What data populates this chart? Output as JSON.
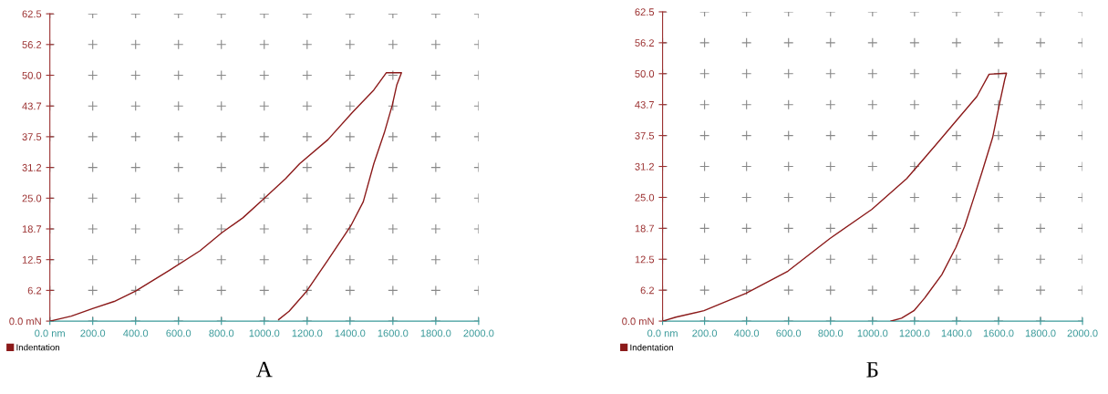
{
  "chart_data": [
    {
      "type": "line",
      "xlim": [
        0,
        2000
      ],
      "ylim": [
        0,
        62.5
      ],
      "xticks": [
        {
          "value": 0,
          "label": "0.0 nm"
        },
        {
          "value": 200,
          "label": "200.0"
        },
        {
          "value": 400,
          "label": "400.0"
        },
        {
          "value": 600,
          "label": "600.0"
        },
        {
          "value": 800,
          "label": "800.0"
        },
        {
          "value": 1000,
          "label": "1000.0"
        },
        {
          "value": 1200,
          "label": "1200.0"
        },
        {
          "value": 1400,
          "label": "1400.0"
        },
        {
          "value": 1600,
          "label": "1600.0"
        },
        {
          "value": 1800,
          "label": "1800.0"
        },
        {
          "value": 2000,
          "label": "2000.0"
        }
      ],
      "yticks": [
        {
          "value": 0,
          "label": "0.0 mN"
        },
        {
          "value": 6.25,
          "label": "6.2"
        },
        {
          "value": 12.5,
          "label": "12.5"
        },
        {
          "value": 18.75,
          "label": "18.7"
        },
        {
          "value": 25,
          "label": "25.0"
        },
        {
          "value": 31.25,
          "label": "31.2"
        },
        {
          "value": 37.5,
          "label": "37.5"
        },
        {
          "value": 43.75,
          "label": "43.7"
        },
        {
          "value": 50,
          "label": "50.0"
        },
        {
          "value": 56.25,
          "label": "56.2"
        },
        {
          "value": 62.5,
          "label": "62.5"
        }
      ],
      "grid": true,
      "legend": "bottom left",
      "annotations": [
        "А"
      ],
      "series": [
        {
          "name": "Indentation",
          "color": "#8b1a1a",
          "x": [
            0,
            100,
            202,
            300,
            400,
            556,
            700,
            803,
            900,
            1001,
            1100,
            1165,
            1297,
            1412,
            1511,
            1569,
            1640,
            1618,
            1597,
            1560,
            1511,
            1462,
            1404,
            1297,
            1198,
            1116,
            1067
          ],
          "values": [
            0,
            1.0,
            2.6,
            4.0,
            6.1,
            10.3,
            14.3,
            18.0,
            21.0,
            25.0,
            29.0,
            32.0,
            36.9,
            42.5,
            47.0,
            50.5,
            50.5,
            48.0,
            43.9,
            38.3,
            32.0,
            24.3,
            19.4,
            12.4,
            6.1,
            2.0,
            0.3
          ]
        }
      ]
    },
    {
      "type": "line",
      "xlim": [
        0,
        2000
      ],
      "ylim": [
        0,
        62.5
      ],
      "xticks": [
        {
          "value": 0,
          "label": "0.0 nm"
        },
        {
          "value": 200,
          "label": "200.0"
        },
        {
          "value": 400,
          "label": "400.0"
        },
        {
          "value": 600,
          "label": "600.0"
        },
        {
          "value": 800,
          "label": "800.0"
        },
        {
          "value": 1000,
          "label": "1000.0"
        },
        {
          "value": 1200,
          "label": "1200.0"
        },
        {
          "value": 1400,
          "label": "1400.0"
        },
        {
          "value": 1600,
          "label": "1600.0"
        },
        {
          "value": 1800,
          "label": "1800.0"
        },
        {
          "value": 2000,
          "label": "2000.0"
        }
      ],
      "yticks": [
        {
          "value": 0,
          "label": "0.0 mN"
        },
        {
          "value": 6.25,
          "label": "6.2"
        },
        {
          "value": 12.5,
          "label": "12.5"
        },
        {
          "value": 18.75,
          "label": "18.7"
        },
        {
          "value": 25,
          "label": "25.0"
        },
        {
          "value": 31.25,
          "label": "31.2"
        },
        {
          "value": 37.5,
          "label": "37.5"
        },
        {
          "value": 43.75,
          "label": "43.7"
        },
        {
          "value": 50,
          "label": "50.0"
        },
        {
          "value": 56.25,
          "label": "56.2"
        },
        {
          "value": 62.5,
          "label": "62.5"
        }
      ],
      "grid": true,
      "legend": "bottom left",
      "annotations": [
        "Б"
      ],
      "series": [
        {
          "name": "Indentation",
          "color": "#8b1a1a",
          "x": [
            0,
            63,
            197,
            397,
            597,
            797,
            997,
            1163,
            1297,
            1413,
            1497,
            1555,
            1638,
            1630,
            1605,
            1572,
            1522,
            1480,
            1438,
            1397,
            1330,
            1247,
            1197,
            1138,
            1088
          ],
          "values": [
            0,
            0.8,
            2.1,
            5.6,
            10.1,
            16.7,
            22.6,
            28.8,
            35.4,
            41.2,
            45.4,
            49.9,
            50.1,
            48.9,
            44.0,
            37.1,
            30.2,
            24.6,
            19.1,
            14.9,
            9.4,
            4.6,
            2.1,
            0.6,
            0
          ]
        }
      ]
    }
  ]
}
